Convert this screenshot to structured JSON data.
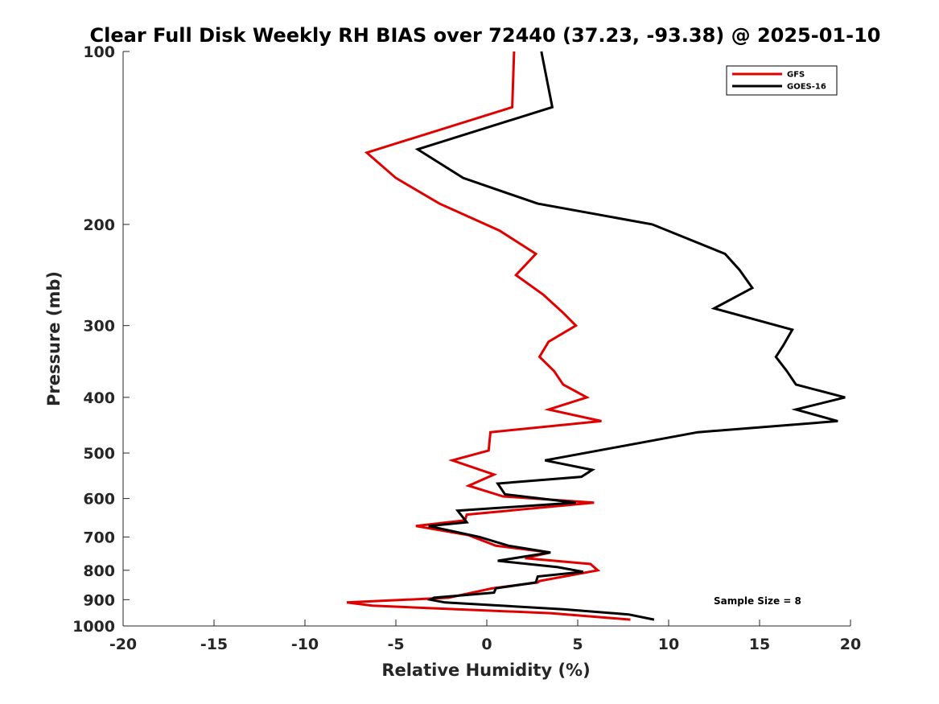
{
  "chart_data": {
    "type": "line",
    "title": "Clear Full Disk Weekly RH BIAS over 72440 (37.23, -93.38) @ 2025-01-10",
    "xlabel": "Relative Humidity (%)",
    "ylabel": "Pressure (mb)",
    "xlim": [
      -20,
      20
    ],
    "ylim": [
      100,
      1000
    ],
    "y_scale": "log",
    "y_reversed": true,
    "grid": false,
    "legend_position": "top-right",
    "xticks": [
      -20,
      -15,
      -10,
      -5,
      0,
      5,
      10,
      15,
      20
    ],
    "yticks": [
      100,
      200,
      300,
      400,
      500,
      600,
      700,
      800,
      900,
      1000
    ],
    "series": [
      {
        "name": "GFS",
        "color": "#e00000",
        "points": [
          [
            1.5,
            100
          ],
          [
            1.4,
            125
          ],
          [
            -6.6,
            150
          ],
          [
            -5.0,
            166
          ],
          [
            -2.6,
            184
          ],
          [
            0.7,
            205
          ],
          [
            2.7,
            225
          ],
          [
            1.6,
            245
          ],
          [
            3.1,
            265
          ],
          [
            4.2,
            285
          ],
          [
            4.9,
            300
          ],
          [
            3.4,
            320
          ],
          [
            2.9,
            340
          ],
          [
            3.7,
            360
          ],
          [
            4.2,
            380
          ],
          [
            5.5,
            400
          ],
          [
            3.4,
            420
          ],
          [
            6.3,
            440
          ],
          [
            0.2,
            460
          ],
          [
            0.1,
            495
          ],
          [
            -1.9,
            515
          ],
          [
            0.4,
            545
          ],
          [
            -1.0,
            570
          ],
          [
            0.9,
            595
          ],
          [
            5.9,
            610
          ],
          [
            -1.1,
            640
          ],
          [
            -1.2,
            655
          ],
          [
            -3.9,
            670
          ],
          [
            -1.0,
            695
          ],
          [
            0.5,
            725
          ],
          [
            3.5,
            745
          ],
          [
            2.1,
            762
          ],
          [
            5.7,
            780
          ],
          [
            6.1,
            800
          ],
          [
            2.9,
            835
          ],
          [
            2.8,
            840
          ],
          [
            0.3,
            860
          ],
          [
            -0.8,
            875
          ],
          [
            -2.1,
            893
          ],
          [
            -7.7,
            910
          ],
          [
            -6.3,
            922
          ],
          [
            3.5,
            950
          ],
          [
            7.9,
            975
          ]
        ]
      },
      {
        "name": "GOES-16",
        "color": "#000000",
        "points": [
          [
            3.0,
            100
          ],
          [
            3.6,
            125
          ],
          [
            -3.8,
            148
          ],
          [
            -1.3,
            166
          ],
          [
            2.8,
            184
          ],
          [
            9.1,
            200
          ],
          [
            13.1,
            225
          ],
          [
            13.9,
            240
          ],
          [
            14.6,
            258
          ],
          [
            12.5,
            280
          ],
          [
            16.8,
            305
          ],
          [
            16.3,
            325
          ],
          [
            15.9,
            340
          ],
          [
            16.5,
            360
          ],
          [
            17.0,
            380
          ],
          [
            19.7,
            400
          ],
          [
            17.0,
            420
          ],
          [
            19.3,
            440
          ],
          [
            11.6,
            460
          ],
          [
            6.9,
            490
          ],
          [
            3.2,
            515
          ],
          [
            5.8,
            535
          ],
          [
            5.2,
            550
          ],
          [
            0.6,
            565
          ],
          [
            1.0,
            590
          ],
          [
            4.9,
            610
          ],
          [
            -1.6,
            630
          ],
          [
            -1.1,
            660
          ],
          [
            -3.2,
            670
          ],
          [
            -0.4,
            700
          ],
          [
            1.2,
            725
          ],
          [
            3.5,
            745
          ],
          [
            0.6,
            770
          ],
          [
            3.9,
            790
          ],
          [
            5.3,
            805
          ],
          [
            2.8,
            820
          ],
          [
            2.7,
            840
          ],
          [
            0.5,
            860
          ],
          [
            0.4,
            875
          ],
          [
            -2.9,
            893
          ],
          [
            -3.1,
            900
          ],
          [
            -2.3,
            910
          ],
          [
            4.2,
            935
          ],
          [
            7.8,
            955
          ],
          [
            9.2,
            975
          ]
        ]
      }
    ],
    "annotations": [
      {
        "text": "Sample Size = 8"
      }
    ]
  }
}
